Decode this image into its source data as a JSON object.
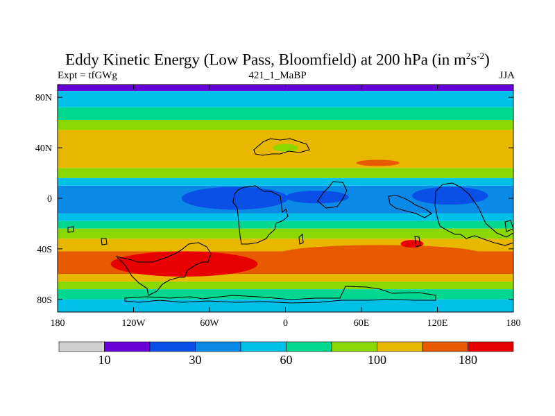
{
  "title": {
    "main": "Eddy Kinetic Energy (Low Pass, Bloomfield) at 200 hPa (in m",
    "sup1": "2",
    "mid": "s",
    "sup2": "-2",
    "end": ")"
  },
  "labels": {
    "left": "Expt = tfGWg",
    "center": "421_1_MaBP",
    "right": "JJA"
  },
  "colors": {
    "palette": [
      "#d0d0d0",
      "#6a00d8",
      "#0a4fe6",
      "#0a8ae6",
      "#00c0e8",
      "#00d890",
      "#8ad800",
      "#e8b800",
      "#e85a00",
      "#e80000"
    ]
  },
  "chart_data": {
    "type": "heatmap",
    "title": "Eddy Kinetic Energy (Low Pass, Bloomfield) at 200 hPa (in m^2 s^-2)",
    "xlabel": "",
    "ylabel": "",
    "xlim": [
      -180,
      180
    ],
    "ylim": [
      -90,
      90
    ],
    "x_ticks": [
      -180,
      -120,
      -60,
      0,
      60,
      120,
      180
    ],
    "x_tick_labels": [
      "180",
      "120W",
      "60W",
      "0",
      "60E",
      "120E",
      "180"
    ],
    "y_ticks": [
      80,
      40,
      0,
      -40,
      -80
    ],
    "y_tick_labels": [
      "80N",
      "40N",
      "0",
      "40S",
      "80S"
    ],
    "colorbar": {
      "levels": [
        5,
        10,
        20,
        30,
        45,
        60,
        80,
        100,
        140,
        180
      ],
      "labels": [
        {
          "after_bin": 1,
          "text": "10"
        },
        {
          "after_bin": 3,
          "text": "30"
        },
        {
          "after_bin": 5,
          "text": "60"
        },
        {
          "after_bin": 7,
          "text": "100"
        },
        {
          "after_bin": 9,
          "text": "180"
        }
      ]
    },
    "lat_bands": [
      {
        "lat_from": 90,
        "lat_to": 85,
        "bin": 1
      },
      {
        "lat_from": 85,
        "lat_to": 72,
        "bin": 4
      },
      {
        "lat_from": 72,
        "lat_to": 62,
        "bin": 5
      },
      {
        "lat_from": 62,
        "lat_to": 54,
        "bin": 6
      },
      {
        "lat_from": 54,
        "lat_to": 24,
        "bin": 7
      },
      {
        "lat_from": 24,
        "lat_to": 16,
        "bin": 6
      },
      {
        "lat_from": 16,
        "lat_to": 10,
        "bin": 4
      },
      {
        "lat_from": 10,
        "lat_to": -12,
        "bin": 3
      },
      {
        "lat_from": -12,
        "lat_to": -18,
        "bin": 4
      },
      {
        "lat_from": -18,
        "lat_to": -24,
        "bin": 5
      },
      {
        "lat_from": -24,
        "lat_to": -32,
        "bin": 6
      },
      {
        "lat_from": -32,
        "lat_to": -42,
        "bin": 7
      },
      {
        "lat_from": -42,
        "lat_to": -60,
        "bin": 8
      },
      {
        "lat_from": -60,
        "lat_to": -66,
        "bin": 7
      },
      {
        "lat_from": -66,
        "lat_to": -72,
        "bin": 6
      },
      {
        "lat_from": -72,
        "lat_to": -80,
        "bin": 5
      },
      {
        "lat_from": -80,
        "lat_to": -90,
        "bin": 4
      }
    ],
    "features": [
      {
        "lon": -40,
        "lat": 0,
        "rx": 42,
        "ry": 9,
        "bin": 2
      },
      {
        "lon": 25,
        "lat": 1,
        "rx": 25,
        "ry": 5,
        "bin": 2
      },
      {
        "lon": 130,
        "lat": 2,
        "rx": 30,
        "ry": 7,
        "bin": 2
      },
      {
        "lon": 75,
        "lat": -44,
        "rx": 80,
        "ry": 7,
        "bin": 8
      },
      {
        "lon": -80,
        "lat": -52,
        "rx": 58,
        "ry": 10,
        "bin": 9
      },
      {
        "lon": 73,
        "lat": 28,
        "rx": 17,
        "ry": 2.5,
        "bin": 8
      },
      {
        "lon": 0,
        "lat": 40,
        "rx": 10,
        "ry": 3,
        "bin": 6
      },
      {
        "lon": 100,
        "lat": -36,
        "rx": 9,
        "ry": 3,
        "bin": 9
      }
    ]
  }
}
